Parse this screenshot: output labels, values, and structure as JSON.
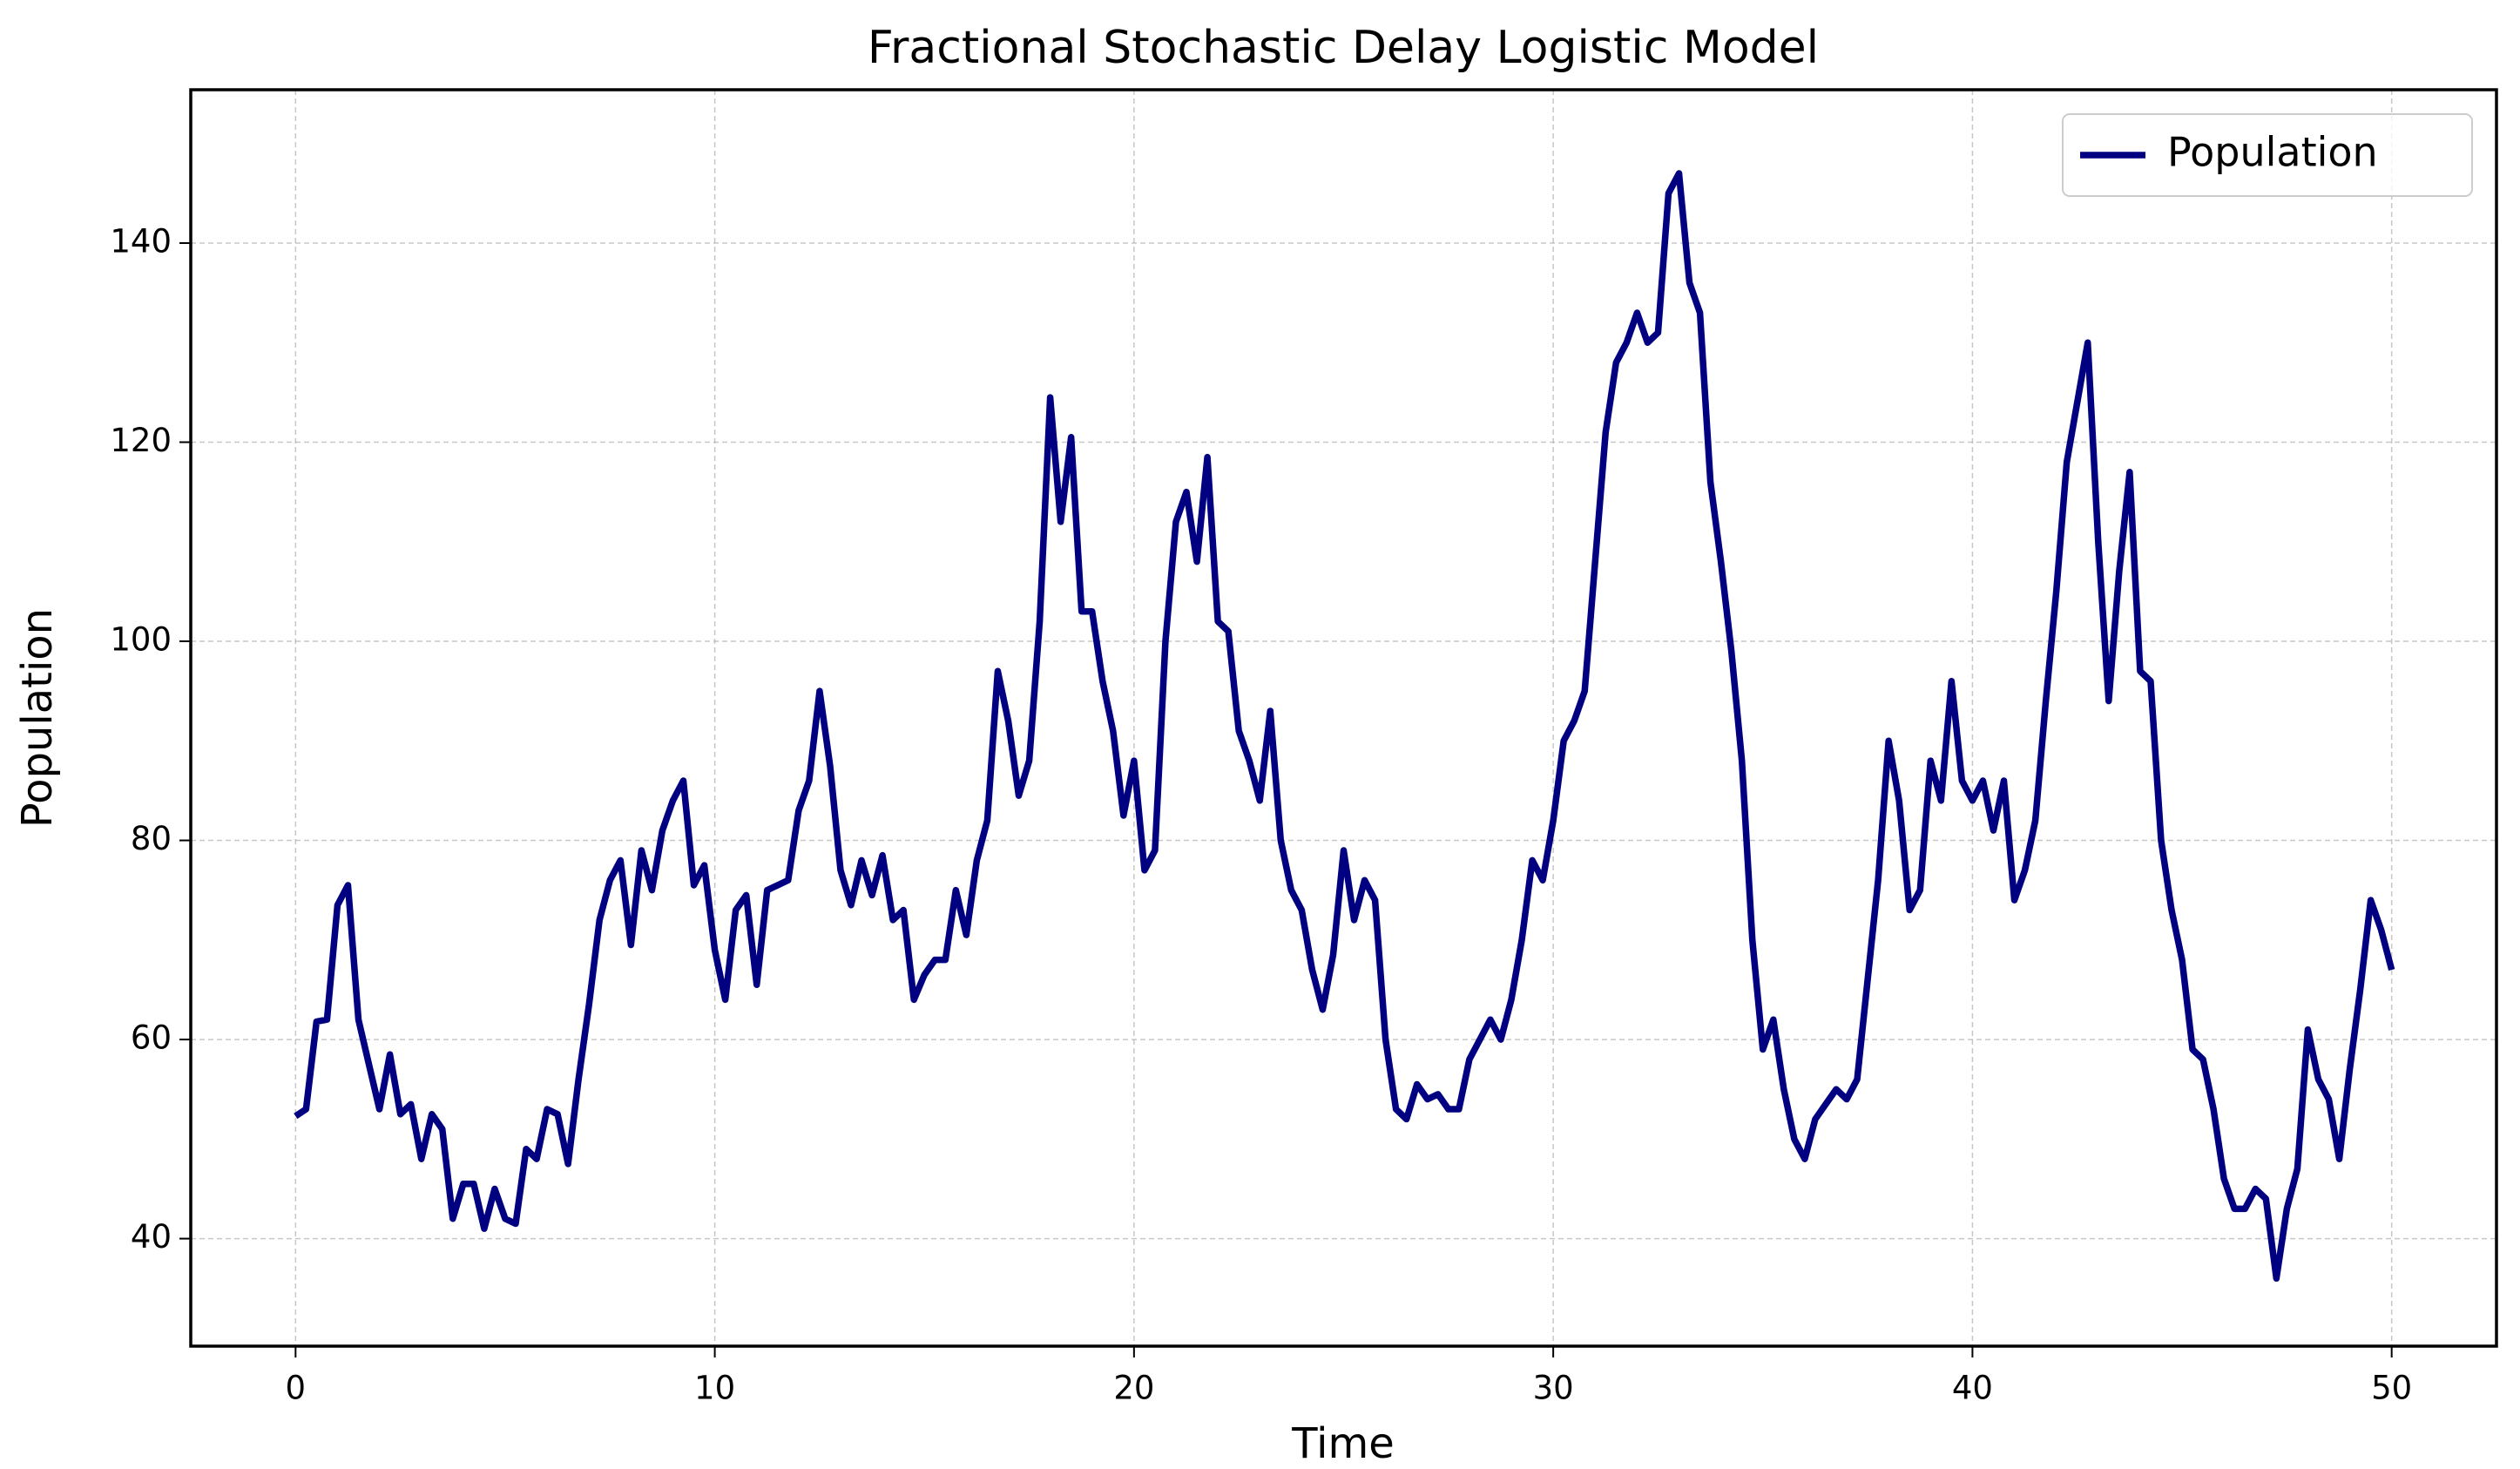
{
  "chart_data": {
    "type": "line",
    "title": "Fractional Stochastic Delay Logistic Model",
    "xlabel": "Time",
    "ylabel": "Population",
    "x": [
      0,
      0.25,
      0.5,
      0.75,
      1,
      1.25,
      1.5,
      1.75,
      2,
      2.25,
      2.5,
      2.75,
      3,
      3.25,
      3.5,
      3.75,
      4,
      4.25,
      4.5,
      4.75,
      5,
      5.25,
      5.5,
      5.75,
      6,
      6.25,
      6.5,
      6.75,
      7,
      7.25,
      7.5,
      7.75,
      8,
      8.25,
      8.5,
      8.75,
      9,
      9.25,
      9.5,
      9.75,
      10,
      10.25,
      10.5,
      10.75,
      11,
      11.25,
      11.5,
      11.75,
      12,
      12.25,
      12.5,
      12.75,
      13,
      13.25,
      13.5,
      13.75,
      14,
      14.25,
      14.5,
      14.75,
      15,
      15.25,
      15.5,
      15.75,
      16,
      16.25,
      16.5,
      16.75,
      17,
      17.25,
      17.5,
      17.75,
      18,
      18.25,
      18.5,
      18.75,
      19,
      19.25,
      19.5,
      19.75,
      20,
      20.25,
      20.5,
      20.75,
      21,
      21.25,
      21.5,
      21.75,
      22,
      22.25,
      22.5,
      22.75,
      23,
      23.25,
      23.5,
      23.75,
      24,
      24.25,
      24.5,
      24.75,
      25,
      25.25,
      25.5,
      25.75,
      26,
      26.25,
      26.5,
      26.75,
      27,
      27.25,
      27.5,
      27.75,
      28,
      28.25,
      28.5,
      28.75,
      29,
      29.25,
      29.5,
      29.75,
      30,
      30.25,
      30.5,
      30.75,
      31,
      31.25,
      31.5,
      31.75,
      32,
      32.25,
      32.5,
      32.75,
      33,
      33.25,
      33.5,
      33.75,
      34,
      34.25,
      34.5,
      34.75,
      35,
      35.25,
      35.5,
      35.75,
      36,
      36.25,
      36.5,
      36.75,
      37,
      37.25,
      37.5,
      37.75,
      38,
      38.25,
      38.5,
      38.75,
      39,
      39.25,
      39.5,
      39.75,
      40,
      40.25,
      40.5,
      40.75,
      41,
      41.25,
      41.5,
      41.75,
      42,
      42.25,
      42.5,
      42.75,
      43,
      43.25,
      43.5,
      43.75,
      44,
      44.25,
      44.5,
      44.75,
      45,
      45.25,
      45.5,
      45.75,
      46,
      46.25,
      46.5,
      46.75,
      47,
      47.25,
      47.5,
      47.75,
      48,
      48.25,
      48.5,
      48.75,
      49,
      49.25,
      49.5,
      49.75,
      50
    ],
    "series": [
      {
        "name": "Population",
        "color": "#000080",
        "values": [
          52.3,
          53,
          61.8,
          62,
          73.5,
          75.5,
          62,
          57.5,
          53,
          58.5,
          52.5,
          53.5,
          48,
          52.5,
          51,
          42,
          45.5,
          45.5,
          41,
          45,
          42,
          41.5,
          49,
          48,
          53,
          52.5,
          47.5,
          56,
          63.5,
          72,
          76,
          78,
          69.5,
          79,
          75,
          81,
          84,
          86,
          75.5,
          77.5,
          69,
          64,
          73,
          74.5,
          65.5,
          75,
          75.5,
          76,
          83,
          86,
          95,
          87.5,
          77,
          73.5,
          78,
          74.5,
          78.5,
          72,
          73,
          64,
          66.5,
          68,
          68,
          75,
          70.5,
          78,
          82,
          97,
          92,
          84.5,
          88,
          102,
          124.5,
          112,
          120.5,
          103,
          103,
          96,
          91,
          82.5,
          88,
          77,
          79,
          100,
          112,
          115,
          108,
          118.5,
          102,
          101,
          91,
          88,
          84,
          93,
          80,
          75,
          73,
          67,
          63,
          68.5,
          79,
          72,
          76,
          74,
          60,
          53,
          52,
          55.5,
          54,
          54.5,
          53,
          53,
          58,
          60,
          62,
          60,
          64,
          70,
          78,
          76,
          82,
          90,
          92,
          95,
          108,
          121,
          128,
          130,
          133,
          130,
          131,
          145,
          147,
          136,
          133,
          116,
          108,
          99,
          88,
          70,
          59,
          62,
          55,
          50,
          48,
          52,
          53.5,
          55,
          54,
          56,
          66,
          76,
          90,
          84,
          73,
          75,
          88,
          84,
          96,
          86,
          84,
          86,
          81,
          86,
          74,
          77,
          82,
          94,
          105,
          118,
          124,
          130,
          110,
          94,
          107,
          117,
          97,
          96,
          80,
          73,
          68,
          59,
          58,
          53,
          46,
          43,
          43,
          45,
          44,
          36,
          43,
          47,
          61,
          56,
          54,
          48,
          57,
          65,
          74,
          71,
          67
        ]
      }
    ],
    "xlim": [
      -2.5,
      52.5
    ],
    "ylim": [
      29.2,
      155.4
    ],
    "xticks": [
      0,
      10,
      20,
      30,
      40,
      50
    ],
    "yticks": [
      40,
      60,
      80,
      100,
      120,
      140
    ],
    "grid": true,
    "legend": "upper right"
  }
}
